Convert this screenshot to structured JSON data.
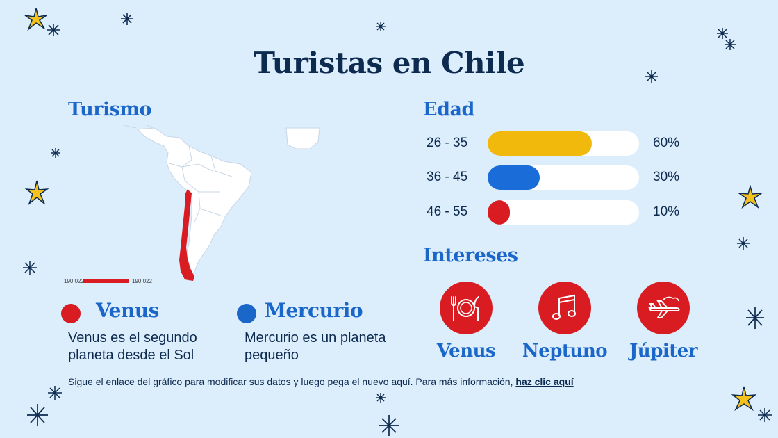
{
  "title": "Turistas en Chile",
  "sections": {
    "tourism_heading": "Turismo",
    "age_heading": "Edad",
    "interests_heading": "Intereses"
  },
  "map": {
    "scale_left": "190.022",
    "scale_right": "190.022",
    "highlight_color": "#d81c22"
  },
  "legend": [
    {
      "name": "Venus",
      "description": "Venus es el segundo planeta desde el Sol",
      "color": "#d81c22"
    },
    {
      "name": "Mercurio",
      "description": "Mercurio es un planeta pequeño",
      "color": "#1a66c9"
    }
  ],
  "chart_data": {
    "type": "bar",
    "title": "Edad",
    "categories": [
      "26 - 35",
      "36 - 45",
      "46 - 55"
    ],
    "values": [
      60,
      30,
      10
    ],
    "value_labels": [
      "60%",
      "30%",
      "10%"
    ],
    "colors": [
      "#f0b90b",
      "#1a6cd9",
      "#d81c22"
    ],
    "ylim": [
      0,
      100
    ]
  },
  "interests": [
    {
      "label": "Venus",
      "icon": "utensils-icon"
    },
    {
      "label": "Neptuno",
      "icon": "music-note-icon"
    },
    {
      "label": "Júpiter",
      "icon": "airplane-icon"
    }
  ],
  "footer": {
    "text": "Sigue el enlace del gráfico para modificar sus datos y luego pega el nuevo aquí. Para más información, ",
    "link": "haz clic aquí"
  }
}
